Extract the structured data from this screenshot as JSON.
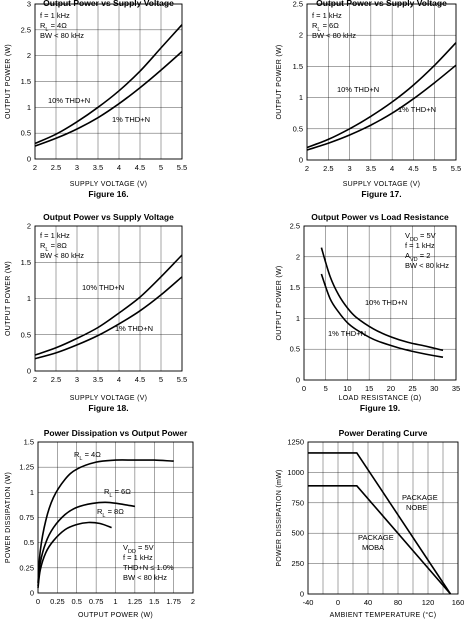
{
  "chart_data": [
    {
      "type": "line",
      "title": "Output Power vs Supply Voltage",
      "figure_label": "Figure 16.",
      "xlabel": "SUPPLY VOLTAGE (V)",
      "ylabel": "OUTPUT POWER (W)",
      "xlim": [
        2,
        5.5
      ],
      "ylim": [
        0,
        3
      ],
      "xticks": [
        2,
        2.5,
        3,
        3.5,
        4,
        4.5,
        5,
        5.5
      ],
      "xtick_labels": [
        "2",
        "2.5",
        "3",
        "3.5",
        "4",
        "4.5",
        "5",
        "5.5"
      ],
      "yticks": [
        0,
        0.5,
        1,
        1.5,
        2,
        2.5,
        3
      ],
      "ytick_labels": [
        "0",
        "0.5",
        "1",
        "1.5",
        "2",
        "2.5",
        "3"
      ],
      "grid": true,
      "conditions": [
        "f = 1 kHz",
        "RL = 4Ω",
        "BW < 80 kHz"
      ],
      "series": [
        {
          "label": "10% THD+N",
          "x": [
            2,
            2.5,
            3,
            3.5,
            4,
            4.5,
            5,
            5.5
          ],
          "y": [
            0.3,
            0.48,
            0.72,
            1.0,
            1.32,
            1.7,
            2.15,
            2.6
          ]
        },
        {
          "label": "1% THD+N",
          "x": [
            2,
            2.5,
            3,
            3.5,
            4,
            4.5,
            5,
            5.5
          ],
          "y": [
            0.25,
            0.4,
            0.58,
            0.8,
            1.07,
            1.38,
            1.72,
            2.08
          ]
        }
      ]
    },
    {
      "type": "line",
      "title": "Output Power vs Supply Voltage",
      "figure_label": "Figure 17.",
      "xlabel": "SUPPLY VOLTAGE (V)",
      "ylabel": "OUTPUT POWER (W)",
      "xlim": [
        2,
        5.5
      ],
      "ylim": [
        0,
        2.5
      ],
      "xticks": [
        2,
        2.5,
        3,
        3.5,
        4,
        4.5,
        5,
        5.5
      ],
      "xtick_labels": [
        "2",
        "2.5",
        "3",
        "3.5",
        "4",
        "4.5",
        "5",
        "5.5"
      ],
      "yticks": [
        0,
        0.5,
        1,
        1.5,
        2,
        2.5
      ],
      "ytick_labels": [
        "0",
        "0.5",
        "1",
        "1.5",
        "2",
        "2.5"
      ],
      "grid": true,
      "conditions": [
        "f = 1 kHz",
        "RL = 6Ω",
        "BW < 80 kHz"
      ],
      "series": [
        {
          "label": "10% THD+N",
          "x": [
            2,
            2.5,
            3,
            3.5,
            4,
            4.5,
            5,
            5.5
          ],
          "y": [
            0.2,
            0.33,
            0.5,
            0.7,
            0.93,
            1.2,
            1.52,
            1.88
          ]
        },
        {
          "label": "1% THD+N",
          "x": [
            2,
            2.5,
            3,
            3.5,
            4,
            4.5,
            5,
            5.5
          ],
          "y": [
            0.16,
            0.27,
            0.4,
            0.56,
            0.75,
            0.98,
            1.24,
            1.52
          ]
        }
      ]
    },
    {
      "type": "line",
      "title": "Output Power vs Supply Voltage",
      "figure_label": "Figure 18.",
      "xlabel": "SUPPLY VOLTAGE (V)",
      "ylabel": "OUTPUT POWER (W)",
      "xlim": [
        2,
        5.5
      ],
      "ylim": [
        0,
        2
      ],
      "xticks": [
        2,
        2.5,
        3,
        3.5,
        4,
        4.5,
        5,
        5.5
      ],
      "xtick_labels": [
        "2",
        "2.5",
        "3",
        "3.5",
        "4",
        "4.5",
        "5",
        "5.5"
      ],
      "yticks": [
        0,
        0.5,
        1,
        1.5,
        2
      ],
      "ytick_labels": [
        "0",
        "0.5",
        "1",
        "1.5",
        "2"
      ],
      "grid": true,
      "conditions": [
        "f = 1 kHz",
        "RL = 8Ω",
        "BW < 80 kHz"
      ],
      "series": [
        {
          "label": "10% THD+N",
          "x": [
            2,
            2.5,
            3,
            3.5,
            4,
            4.5,
            5,
            5.5
          ],
          "y": [
            0.22,
            0.32,
            0.45,
            0.6,
            0.8,
            1.02,
            1.3,
            1.6
          ]
        },
        {
          "label": "1% THD+N",
          "x": [
            2,
            2.5,
            3,
            3.5,
            4,
            4.5,
            5,
            5.5
          ],
          "y": [
            0.17,
            0.25,
            0.36,
            0.49,
            0.65,
            0.83,
            1.05,
            1.3
          ]
        }
      ]
    },
    {
      "type": "line",
      "title": "Output Power vs Load Resistance",
      "figure_label": "Figure 19.",
      "xlabel": "LOAD RESISTANCE (Ω)",
      "ylabel": "OUTPUT POWER (W)",
      "xlim": [
        0,
        35
      ],
      "ylim": [
        0,
        2.5
      ],
      "xticks": [
        0,
        5,
        10,
        15,
        20,
        25,
        30,
        35
      ],
      "xtick_labels": [
        "0",
        "5",
        "10",
        "15",
        "20",
        "25",
        "30",
        "35"
      ],
      "yticks": [
        0,
        0.5,
        1,
        1.5,
        2,
        2.5
      ],
      "ytick_labels": [
        "0",
        "0.5",
        "1",
        "1.5",
        "2",
        "2.5"
      ],
      "grid": true,
      "conditions": [
        "VDD = 5V",
        "f = 1 kHz",
        "AVD = 2",
        "BW < 80 kHz"
      ],
      "series": [
        {
          "label": "10% THD+N",
          "x": [
            4,
            6,
            8,
            10,
            12,
            16,
            20,
            24,
            28,
            32
          ],
          "y": [
            2.15,
            1.68,
            1.38,
            1.17,
            1.02,
            0.83,
            0.7,
            0.61,
            0.55,
            0.48
          ]
        },
        {
          "label": "1% THD+N",
          "x": [
            4,
            6,
            8,
            10,
            12,
            16,
            20,
            24,
            28,
            32
          ],
          "y": [
            1.72,
            1.32,
            1.1,
            0.93,
            0.82,
            0.66,
            0.56,
            0.48,
            0.42,
            0.37
          ]
        }
      ]
    },
    {
      "type": "line",
      "title": "Power Dissipation vs Output Power",
      "xlabel": "OUTPUT POWER (W)",
      "ylabel": "POWER DISSIPATION (W)",
      "xlim": [
        0,
        2
      ],
      "ylim": [
        0,
        1.5
      ],
      "xticks": [
        0,
        0.25,
        0.5,
        0.75,
        1,
        1.25,
        1.5,
        1.75,
        2
      ],
      "xtick_labels": [
        "0",
        "0.25",
        "0.5",
        "0.75",
        "1",
        "1.25",
        "1.5",
        "1.75",
        "2"
      ],
      "yticks": [
        0,
        0.25,
        0.5,
        0.75,
        1,
        1.25,
        1.5
      ],
      "ytick_labels": [
        "0",
        "0.25",
        "0.5",
        "0.75",
        "1",
        "1.25",
        "1.5"
      ],
      "grid": true,
      "conditions": [
        "VDD = 5V",
        "f = 1 kHz",
        "THD+N ≤ 1.0%",
        "BW < 80 kHz"
      ],
      "series": [
        {
          "label": "RL = 4Ω",
          "x": [
            0,
            0.03,
            0.1,
            0.2,
            0.35,
            0.5,
            0.75,
            1.0,
            1.25,
            1.5,
            1.75
          ],
          "y": [
            0.1,
            0.42,
            0.72,
            0.95,
            1.13,
            1.23,
            1.3,
            1.32,
            1.32,
            1.32,
            1.31
          ]
        },
        {
          "label": "RL = 6Ω",
          "x": [
            0,
            0.03,
            0.1,
            0.2,
            0.35,
            0.5,
            0.7,
            0.9,
            1.1,
            1.25
          ],
          "y": [
            0.07,
            0.3,
            0.5,
            0.65,
            0.78,
            0.85,
            0.89,
            0.9,
            0.88,
            0.86
          ]
        },
        {
          "label": "RL = 8Ω",
          "x": [
            0,
            0.03,
            0.1,
            0.2,
            0.35,
            0.5,
            0.65,
            0.8,
            0.95
          ],
          "y": [
            0.05,
            0.23,
            0.4,
            0.52,
            0.63,
            0.68,
            0.7,
            0.69,
            0.65
          ]
        }
      ]
    },
    {
      "type": "line",
      "title": "Power Derating Curve",
      "xlabel": "AMBIENT TEMPERATURE (°C)",
      "ylabel": "POWER DISSIPATION (mW)",
      "xlim": [
        -40,
        160
      ],
      "ylim": [
        0,
        1250
      ],
      "xticks": [
        -40,
        -20,
        0,
        20,
        40,
        60,
        80,
        100,
        120,
        140,
        160
      ],
      "xtick_labels": [
        "-40",
        "",
        "0",
        "",
        "40",
        "",
        "80",
        "",
        "120",
        "",
        "160"
      ],
      "yticks": [
        0,
        250,
        500,
        750,
        1000,
        1250
      ],
      "ytick_labels": [
        "0",
        "250",
        "500",
        "750",
        "1000",
        "1250"
      ],
      "grid": true,
      "series": [
        {
          "label": "PACKAGE NOBE",
          "x": [
            -40,
            25,
            150
          ],
          "y": [
            1160,
            1160,
            0
          ]
        },
        {
          "label": "PACKAGE MOBA",
          "x": [
            -40,
            25,
            150
          ],
          "y": [
            890,
            890,
            0
          ]
        }
      ]
    }
  ]
}
